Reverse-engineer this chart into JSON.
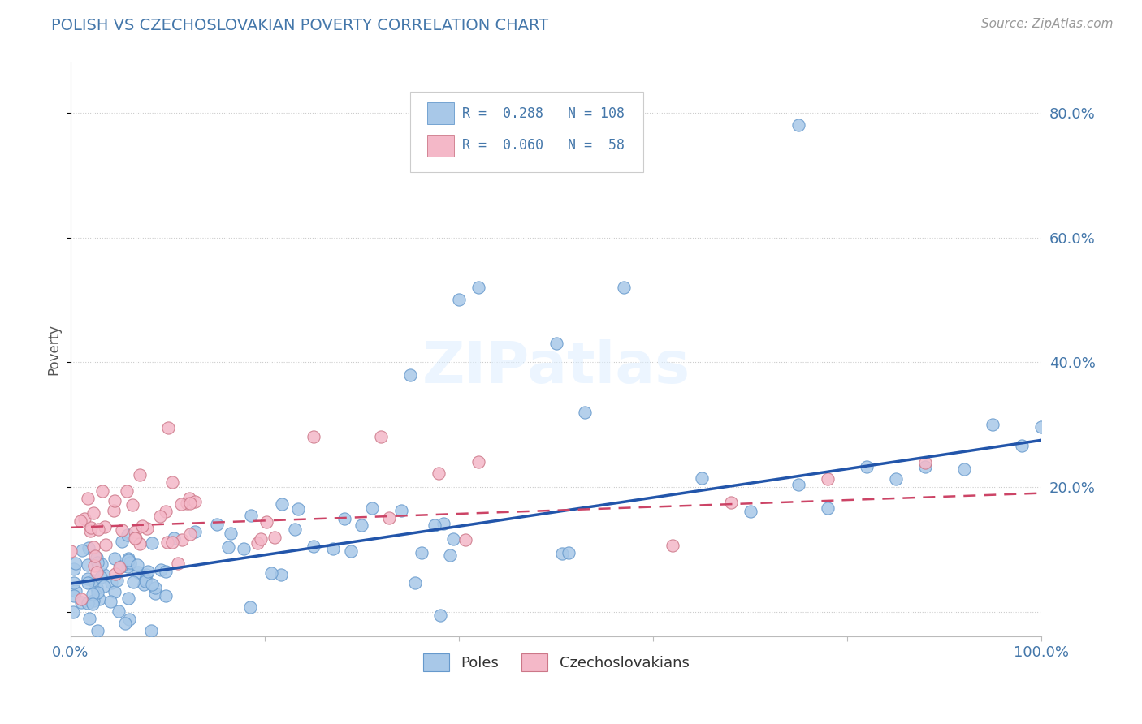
{
  "title": "POLISH VS CZECHOSLOVAKIAN POVERTY CORRELATION CHART",
  "source": "Source: ZipAtlas.com",
  "ylabel": "Poverty",
  "xlim": [
    0.0,
    1.0
  ],
  "ylim": [
    -0.04,
    0.88
  ],
  "poles_color": "#a8c8e8",
  "poles_edge_color": "#6699cc",
  "czech_color": "#f4b8c8",
  "czech_edge_color": "#cc7788",
  "trend_poles_color": "#2255aa",
  "trend_czech_color": "#cc4466",
  "background_color": "#ffffff",
  "watermark": "ZIPatlas",
  "poles_trend_x0": 0.0,
  "poles_trend_y0": 0.045,
  "poles_trend_x1": 1.0,
  "poles_trend_y1": 0.275,
  "czech_trend_x0": 0.0,
  "czech_trend_y0": 0.135,
  "czech_trend_x1": 1.0,
  "czech_trend_y1": 0.19
}
